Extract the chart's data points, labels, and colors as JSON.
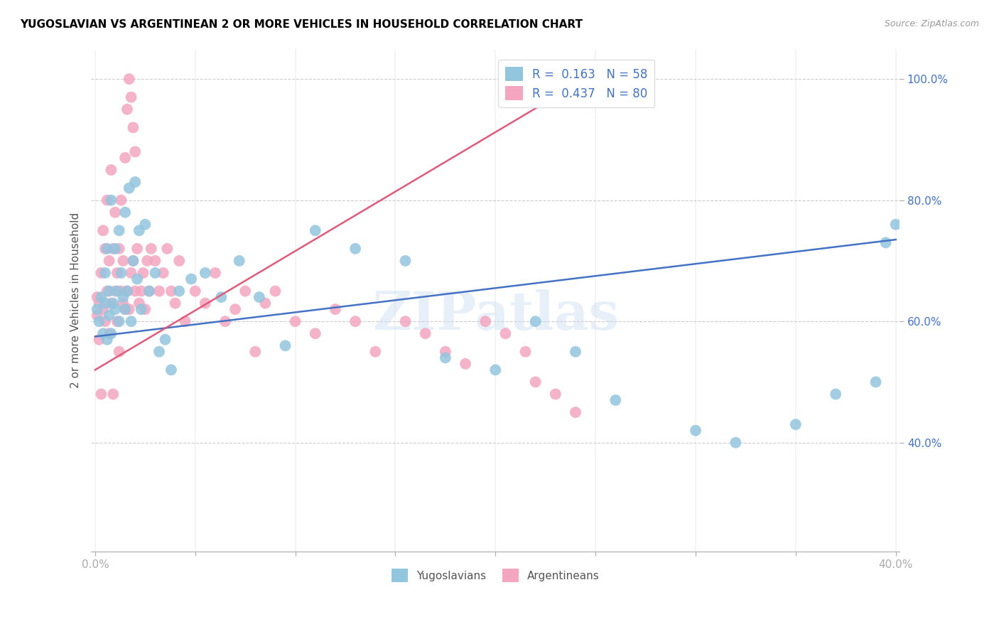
{
  "title": "YUGOSLAVIAN VS ARGENTINEAN 2 OR MORE VEHICLES IN HOUSEHOLD CORRELATION CHART",
  "source": "Source: ZipAtlas.com",
  "ylabel": "2 or more Vehicles in Household",
  "xlim": [
    -0.002,
    0.402
  ],
  "ylim": [
    0.22,
    1.05
  ],
  "xtick_vals": [
    0.0,
    0.05,
    0.1,
    0.15,
    0.2,
    0.25,
    0.3,
    0.35,
    0.4
  ],
  "xtick_labels": [
    "0.0%",
    "",
    "",
    "",
    "",
    "",
    "",
    "",
    "40.0%"
  ],
  "ytick_vals": [
    0.4,
    0.6,
    0.8,
    1.0
  ],
  "ytick_labels": [
    "40.0%",
    "60.0%",
    "80.0%",
    "100.0%"
  ],
  "legend_blue_label": "R =  0.163   N = 58",
  "legend_pink_label": "R =  0.437   N = 80",
  "blue_color": "#92c5de",
  "pink_color": "#f4a6c0",
  "blue_line_color": "#4472c4",
  "pink_line_color": "#e05a7a",
  "watermark": "ZIPatlas",
  "blue_scatter_x": [
    0.001,
    0.002,
    0.003,
    0.004,
    0.005,
    0.005,
    0.006,
    0.006,
    0.007,
    0.007,
    0.008,
    0.008,
    0.009,
    0.01,
    0.01,
    0.011,
    0.012,
    0.012,
    0.013,
    0.014,
    0.015,
    0.015,
    0.016,
    0.017,
    0.018,
    0.019,
    0.02,
    0.021,
    0.022,
    0.023,
    0.025,
    0.027,
    0.03,
    0.032,
    0.035,
    0.038,
    0.042,
    0.048,
    0.055,
    0.063,
    0.072,
    0.082,
    0.095,
    0.11,
    0.13,
    0.155,
    0.175,
    0.2,
    0.22,
    0.24,
    0.26,
    0.3,
    0.32,
    0.35,
    0.37,
    0.39,
    0.395,
    0.4
  ],
  "blue_scatter_y": [
    0.62,
    0.6,
    0.64,
    0.58,
    0.63,
    0.68,
    0.57,
    0.72,
    0.61,
    0.65,
    0.8,
    0.58,
    0.63,
    0.72,
    0.62,
    0.65,
    0.75,
    0.6,
    0.68,
    0.64,
    0.62,
    0.78,
    0.65,
    0.82,
    0.6,
    0.7,
    0.83,
    0.67,
    0.75,
    0.62,
    0.76,
    0.65,
    0.68,
    0.55,
    0.57,
    0.52,
    0.65,
    0.67,
    0.68,
    0.64,
    0.7,
    0.64,
    0.56,
    0.75,
    0.72,
    0.7,
    0.54,
    0.52,
    0.6,
    0.55,
    0.47,
    0.42,
    0.4,
    0.43,
    0.48,
    0.5,
    0.73,
    0.76
  ],
  "pink_scatter_x": [
    0.001,
    0.001,
    0.002,
    0.002,
    0.003,
    0.003,
    0.004,
    0.004,
    0.005,
    0.005,
    0.006,
    0.006,
    0.007,
    0.007,
    0.008,
    0.008,
    0.009,
    0.009,
    0.01,
    0.01,
    0.011,
    0.011,
    0.012,
    0.012,
    0.013,
    0.013,
    0.014,
    0.014,
    0.015,
    0.015,
    0.016,
    0.016,
    0.017,
    0.017,
    0.018,
    0.018,
    0.019,
    0.019,
    0.02,
    0.02,
    0.021,
    0.022,
    0.023,
    0.024,
    0.025,
    0.026,
    0.027,
    0.028,
    0.03,
    0.032,
    0.034,
    0.036,
    0.038,
    0.04,
    0.042,
    0.045,
    0.05,
    0.055,
    0.06,
    0.065,
    0.07,
    0.075,
    0.08,
    0.085,
    0.09,
    0.1,
    0.11,
    0.12,
    0.13,
    0.14,
    0.155,
    0.165,
    0.175,
    0.185,
    0.195,
    0.205,
    0.215,
    0.22,
    0.23,
    0.24
  ],
  "pink_scatter_y": [
    0.61,
    0.64,
    0.57,
    0.63,
    0.48,
    0.68,
    0.62,
    0.75,
    0.6,
    0.72,
    0.65,
    0.8,
    0.58,
    0.7,
    0.63,
    0.85,
    0.48,
    0.72,
    0.65,
    0.78,
    0.6,
    0.68,
    0.55,
    0.72,
    0.65,
    0.8,
    0.7,
    0.63,
    0.62,
    0.87,
    0.65,
    0.95,
    0.62,
    1.0,
    0.68,
    0.97,
    0.7,
    0.92,
    0.65,
    0.88,
    0.72,
    0.63,
    0.65,
    0.68,
    0.62,
    0.7,
    0.65,
    0.72,
    0.7,
    0.65,
    0.68,
    0.72,
    0.65,
    0.63,
    0.7,
    0.6,
    0.65,
    0.63,
    0.68,
    0.6,
    0.62,
    0.65,
    0.55,
    0.63,
    0.65,
    0.6,
    0.58,
    0.62,
    0.6,
    0.55,
    0.6,
    0.58,
    0.55,
    0.53,
    0.6,
    0.58,
    0.55,
    0.5,
    0.48,
    0.45
  ]
}
